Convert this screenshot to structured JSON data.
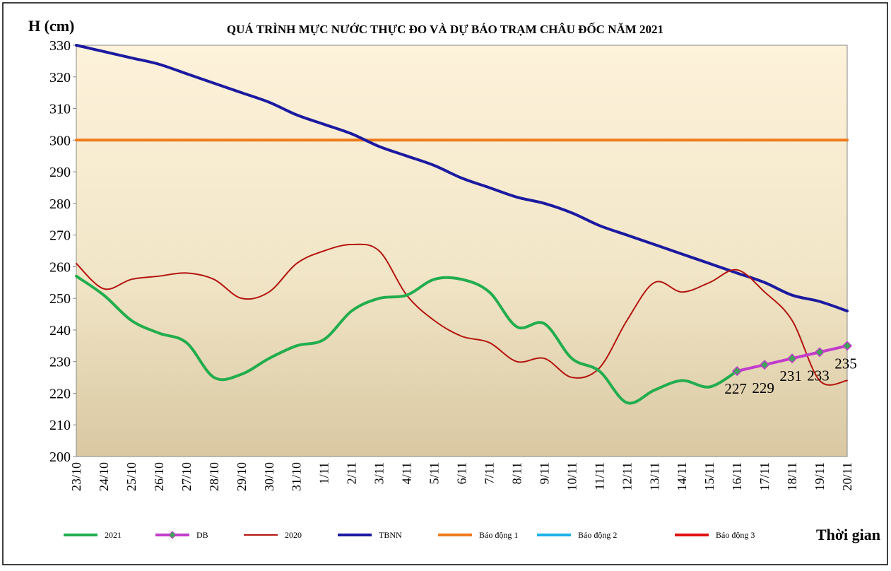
{
  "chart_data": {
    "type": "line",
    "title": "QUÁ TRÌNH MỰC NƯỚC THỰC ĐO VÀ DỰ BÁO TRẠM CHÂU ĐỐC NĂM  2021",
    "y_label": "H (cm)",
    "x_label": "Thời gian",
    "categories": [
      "23/10",
      "24/10",
      "25/10",
      "26/10",
      "27/10",
      "28/10",
      "29/10",
      "30/10",
      "31/10",
      "1/11",
      "2/11",
      "3/11",
      "4/11",
      "5/11",
      "6/11",
      "7/11",
      "8/11",
      "9/11",
      "10/11",
      "11/11",
      "12/11",
      "13/11",
      "14/11",
      "15/11",
      "16/11",
      "17/11",
      "18/11",
      "19/11",
      "20/11"
    ],
    "ylim": [
      200,
      330
    ],
    "yticks": [
      200,
      210,
      220,
      230,
      240,
      250,
      260,
      270,
      280,
      290,
      300,
      310,
      320,
      330
    ],
    "series": [
      {
        "name": "2021",
        "color": "#22ad4e",
        "width": 4,
        "values": [
          257,
          251,
          243,
          239,
          236,
          225,
          226,
          231,
          235,
          237,
          246,
          250,
          251,
          256,
          256,
          252,
          241,
          242,
          231,
          227,
          217,
          221,
          224,
          222,
          227,
          null,
          null,
          null,
          null
        ]
      },
      {
        "name": "DB",
        "color": "#c23ccb",
        "width": 4,
        "marker": "diamond",
        "data_labels": true,
        "values": [
          null,
          null,
          null,
          null,
          null,
          null,
          null,
          null,
          null,
          null,
          null,
          null,
          null,
          null,
          null,
          null,
          null,
          null,
          null,
          null,
          null,
          null,
          null,
          null,
          227,
          229,
          231,
          233,
          235
        ]
      },
      {
        "name": "2020",
        "color": "#b3140f",
        "width": 2,
        "values": [
          261,
          253,
          256,
          257,
          258,
          256,
          250,
          252,
          261,
          265,
          267,
          265,
          251,
          243,
          238,
          236,
          230,
          231,
          225,
          228,
          243,
          255,
          252,
          255,
          259,
          252,
          243,
          224,
          224
        ]
      },
      {
        "name": "TBNN",
        "color": "#1c1aa0",
        "width": 4,
        "values": [
          330,
          328,
          326,
          324,
          321,
          318,
          315,
          312,
          308,
          305,
          302,
          298,
          295,
          292,
          288,
          285,
          282,
          280,
          277,
          273,
          270,
          267,
          264,
          261,
          258,
          255,
          251,
          249,
          246
        ]
      },
      {
        "name": "Báo động 1",
        "color": "#ef7a1a",
        "width": 4,
        "values": [
          300,
          300,
          300,
          300,
          300,
          300,
          300,
          300,
          300,
          300,
          300,
          300,
          300,
          300,
          300,
          300,
          300,
          300,
          300,
          300,
          300,
          300,
          300,
          300,
          300,
          300,
          300,
          300,
          300
        ]
      },
      {
        "name": "Báo động 2",
        "color": "#1cb2ea",
        "width": 4,
        "values": [
          null,
          null,
          null,
          null,
          null,
          null,
          null,
          null,
          null,
          null,
          null,
          null,
          null,
          null,
          null,
          null,
          null,
          null,
          null,
          null,
          null,
          null,
          null,
          null,
          null,
          null,
          null,
          null,
          null
        ]
      },
      {
        "name": "Báo động 3",
        "color": "#e0120f",
        "width": 4,
        "values": [
          null,
          null,
          null,
          null,
          null,
          null,
          null,
          null,
          null,
          null,
          null,
          null,
          null,
          null,
          null,
          null,
          null,
          null,
          null,
          null,
          null,
          null,
          null,
          null,
          null,
          null,
          null,
          null,
          null
        ]
      }
    ]
  }
}
